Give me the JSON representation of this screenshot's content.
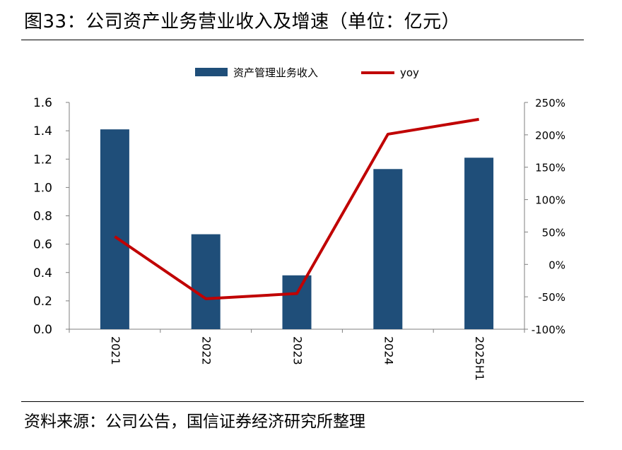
{
  "figure": {
    "title": "图33：公司资产业务营业收入及增速（单位：亿元）",
    "source": "资料来源：公司公告，国信证券经济研究所整理"
  },
  "colors": {
    "bar": "#1f4e79",
    "line": "#c00000",
    "axis": "#7f7f7f"
  },
  "chart_data": {
    "type": "bar",
    "categories": [
      "2021",
      "2022",
      "2023",
      "2024",
      "2025H1"
    ],
    "series": [
      {
        "name": "资产管理业务收入",
        "type": "bar",
        "axis": "left",
        "values": [
          1.41,
          0.67,
          0.38,
          1.13,
          1.21
        ]
      },
      {
        "name": "yoy",
        "type": "line",
        "axis": "right",
        "values": [
          43,
          -53,
          -45,
          201,
          224
        ]
      }
    ],
    "y_left": {
      "min": 0,
      "max": 1.6,
      "ticks": [
        "0.0",
        "0.2",
        "0.4",
        "0.6",
        "0.8",
        "1.0",
        "1.2",
        "1.4",
        "1.6"
      ]
    },
    "y_right": {
      "min": -100,
      "max": 250,
      "unit": "%",
      "ticks": [
        "-100%",
        "-50%",
        "0%",
        "50%",
        "100%",
        "150%",
        "200%",
        "250%"
      ]
    },
    "legend": "top-center",
    "grid": false
  }
}
